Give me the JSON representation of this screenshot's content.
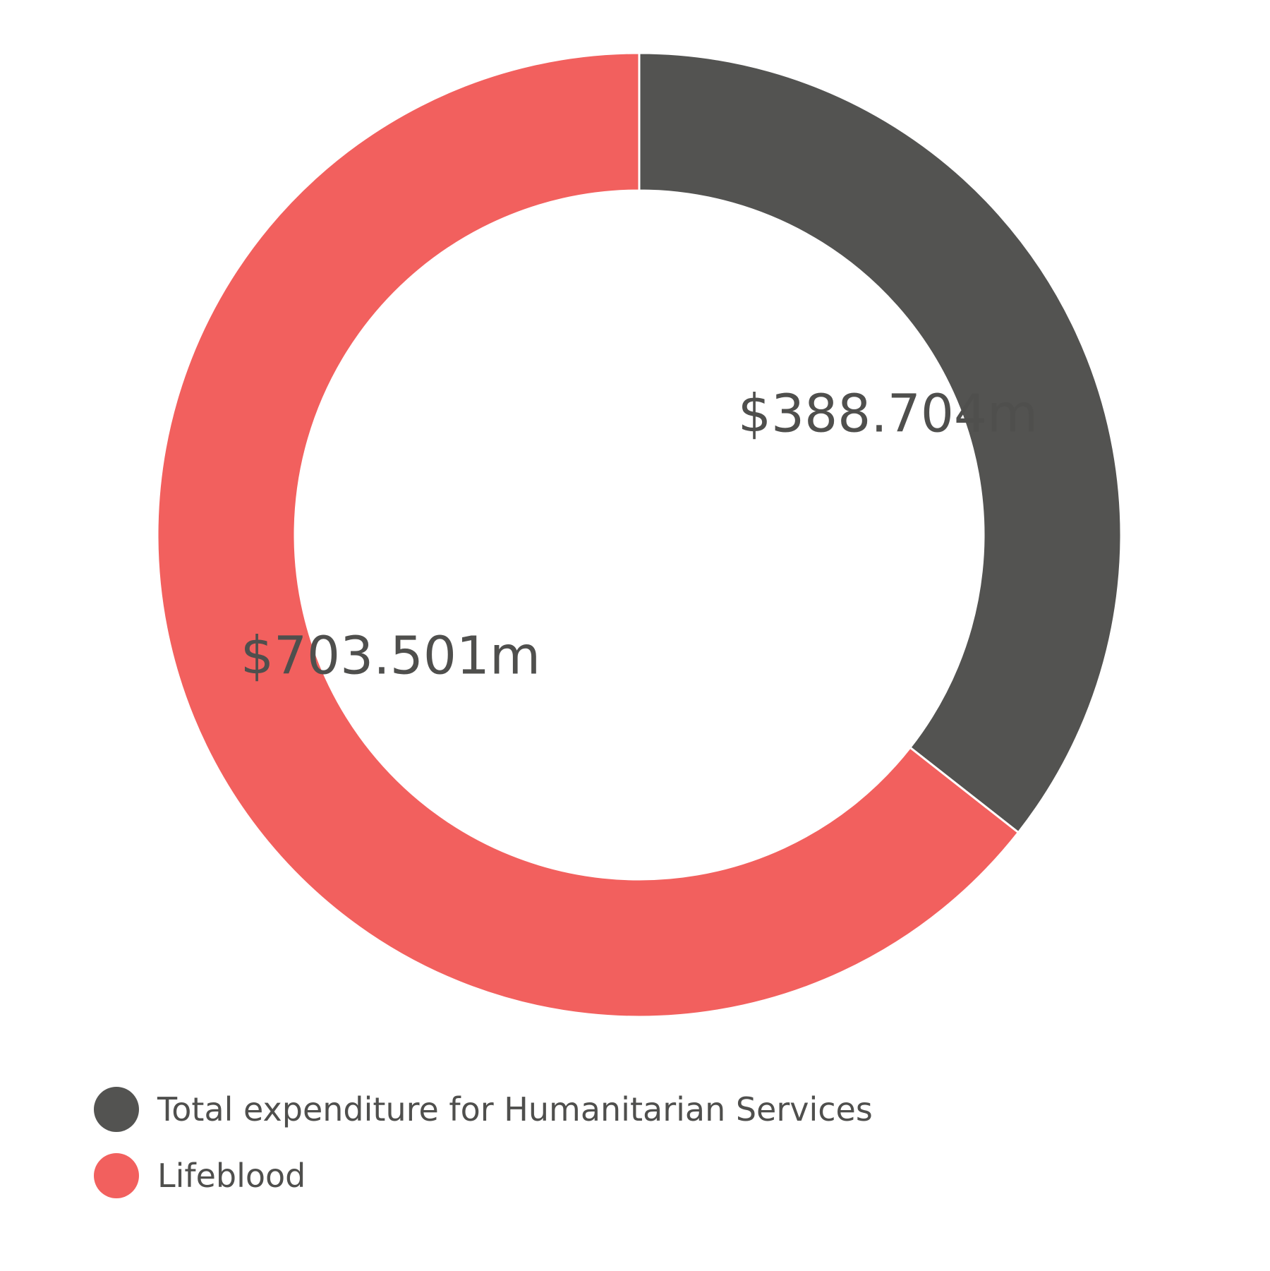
{
  "chart_data": {
    "type": "pie",
    "variant": "donut",
    "title": "",
    "slices": [
      {
        "name": "Total expenditure for Humanitarian Services",
        "value": 388.704,
        "label": "$388.704m",
        "color": "#535351"
      },
      {
        "name": "Lifeblood",
        "value": 703.501,
        "label": "$703.501m",
        "color": "#f2605e"
      }
    ],
    "start_angle_deg": 0,
    "direction": "clockwise",
    "legend_position": "bottom-left"
  }
}
